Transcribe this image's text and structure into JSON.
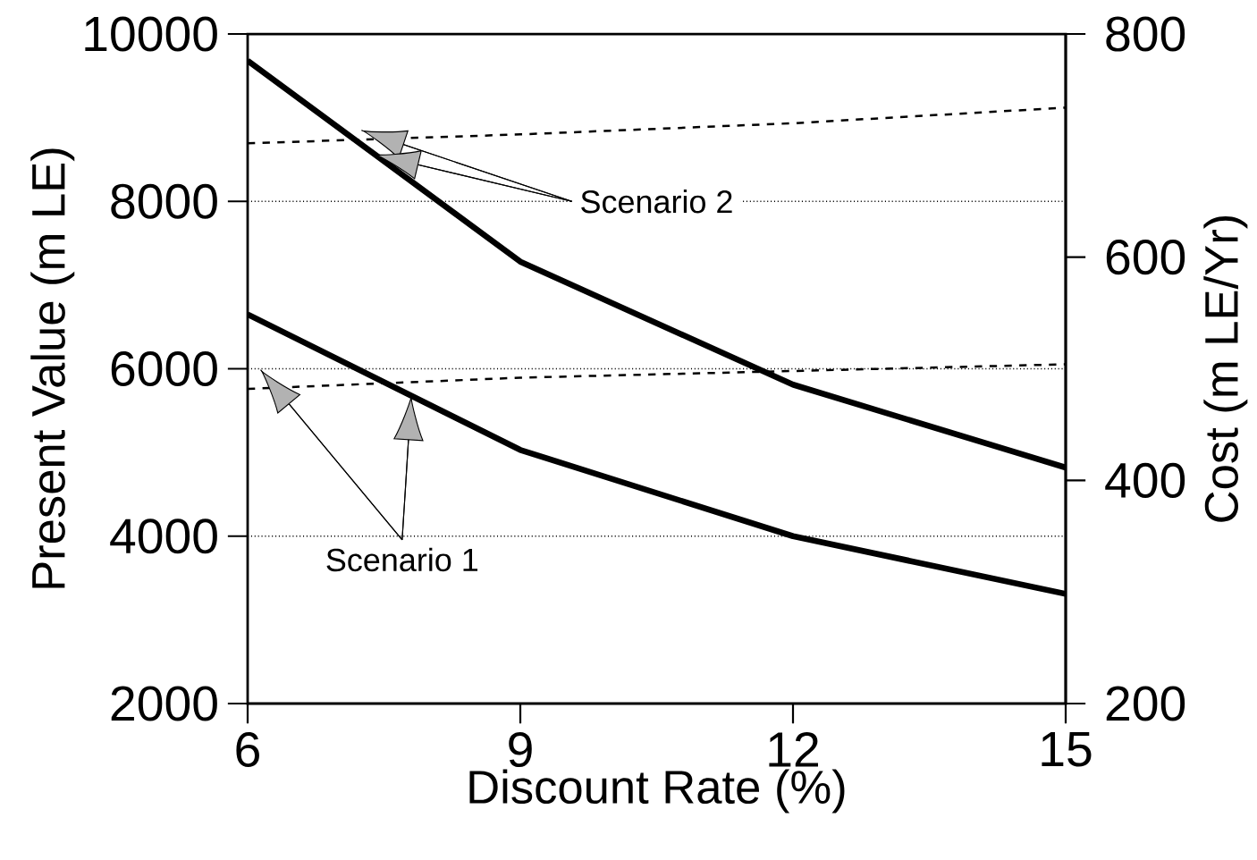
{
  "chart_data": {
    "type": "line",
    "xlabel": "Discount Rate (%)",
    "ylabel": "Present Value (m LE)",
    "y2label": "Cost (m LE/Yr)",
    "x": [
      6,
      9,
      12,
      15
    ],
    "series": [
      {
        "color": "#000000",
        "line_style": "solid",
        "values": [
          6650,
          5030,
          4000,
          3310
        ]
      },
      {
        "color": "#000000",
        "line_style": "solid",
        "values": [
          9680,
          7280,
          5810,
          4820
        ]
      },
      {
        "color": "#000000",
        "line_style": "dashed",
        "axis": "y2",
        "values": [
          482,
          492,
          498,
          504
        ]
      },
      {
        "color": "#000000",
        "line_style": "dashed",
        "axis": "y2",
        "values": [
          702,
          710,
          720,
          734
        ]
      }
    ],
    "xlim": [
      6,
      15
    ],
    "xticks": [
      6,
      9,
      12,
      15
    ],
    "ylim": [
      2000,
      10000
    ],
    "yticks": [
      2000,
      4000,
      6000,
      8000,
      10000
    ],
    "y2lim": [
      200,
      800
    ],
    "y2ticks": [
      200,
      400,
      600,
      800
    ],
    "grid": "y",
    "annotations": [
      {
        "text": "Scenario 1",
        "x": 7.8,
        "y": 5680
      },
      {
        "text": "Scenario 2",
        "x": 7.4,
        "y": 8560
      }
    ]
  }
}
